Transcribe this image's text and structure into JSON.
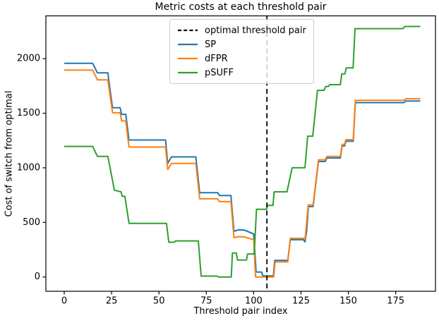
{
  "figure": {
    "title": "Metric costs at each threshold pair",
    "x_label": "Threshold pair index",
    "y_label": "Cost of switch from optimal"
  },
  "legend": {
    "items": [
      {
        "label": "optimal threshold pair",
        "color": "#000000",
        "style": "dashed"
      },
      {
        "label": "SP",
        "color": "#1f77b4",
        "style": "solid"
      },
      {
        "label": "dFPR",
        "color": "#ff7f0e",
        "style": "solid"
      },
      {
        "label": "pSUFF",
        "color": "#2ca02c",
        "style": "solid"
      }
    ]
  },
  "chart_data": {
    "type": "line",
    "title": "Metric costs at each threshold pair",
    "xlabel": "Threshold pair index",
    "ylabel": "Cost of switch from optimal",
    "xlim": [
      -9.7,
      196
    ],
    "ylim": [
      -131,
      2392
    ],
    "x_ticks": [
      0,
      25,
      50,
      75,
      100,
      125,
      150,
      175
    ],
    "y_ticks": [
      0,
      500,
      1000,
      1500,
      2000
    ],
    "grid": false,
    "legend_position": "upper center",
    "vline": {
      "x": 107,
      "label": "optimal threshold pair",
      "color": "#000000",
      "style": "dashed"
    },
    "series": [
      {
        "name": "SP",
        "color": "#1f77b4",
        "points": [
          [
            0,
            1957
          ],
          [
            15,
            1957
          ],
          [
            17.5,
            1870
          ],
          [
            23,
            1870
          ],
          [
            24.3,
            1700
          ],
          [
            25.5,
            1550
          ],
          [
            29.5,
            1550
          ],
          [
            30.3,
            1490
          ],
          [
            32.5,
            1490
          ],
          [
            34.2,
            1255
          ],
          [
            53.5,
            1255
          ],
          [
            54.6,
            1041
          ],
          [
            56.6,
            1100
          ],
          [
            69.5,
            1100
          ],
          [
            71.5,
            772
          ],
          [
            81,
            772
          ],
          [
            82,
            746
          ],
          [
            88,
            746
          ],
          [
            89.6,
            418
          ],
          [
            92,
            432
          ],
          [
            95,
            430
          ],
          [
            100,
            394
          ],
          [
            101.3,
            45
          ],
          [
            104.2,
            45
          ],
          [
            104.9,
            10
          ],
          [
            110.4,
            10
          ],
          [
            111.1,
            152
          ],
          [
            118,
            152
          ],
          [
            119.4,
            341
          ],
          [
            126.3,
            341
          ],
          [
            127.1,
            322
          ],
          [
            128,
            420
          ],
          [
            128.9,
            645
          ],
          [
            131.4,
            645
          ],
          [
            134.2,
            1058
          ],
          [
            137.8,
            1058
          ],
          [
            138.7,
            1090
          ],
          [
            145.8,
            1090
          ],
          [
            146.7,
            1200
          ],
          [
            148,
            1200
          ],
          [
            148.7,
            1243
          ],
          [
            152.6,
            1243
          ],
          [
            153.7,
            1597
          ],
          [
            179.3,
            1597
          ],
          [
            180.3,
            1612
          ],
          [
            188,
            1612
          ]
        ]
      },
      {
        "name": "dFPR",
        "color": "#ff7f0e",
        "points": [
          [
            0,
            1895
          ],
          [
            15,
            1895
          ],
          [
            17.5,
            1806
          ],
          [
            23,
            1806
          ],
          [
            24.3,
            1650
          ],
          [
            25.5,
            1504
          ],
          [
            29.5,
            1504
          ],
          [
            30.3,
            1429
          ],
          [
            32.5,
            1429
          ],
          [
            34.2,
            1190
          ],
          [
            53.5,
            1190
          ],
          [
            54.6,
            985
          ],
          [
            56.6,
            1040
          ],
          [
            69.5,
            1040
          ],
          [
            71.5,
            716
          ],
          [
            81,
            716
          ],
          [
            82,
            690
          ],
          [
            88,
            690
          ],
          [
            89.6,
            360
          ],
          [
            92,
            370
          ],
          [
            95,
            367
          ],
          [
            100,
            341
          ],
          [
            101,
            0
          ],
          [
            110.6,
            0
          ],
          [
            111.3,
            138
          ],
          [
            118,
            138
          ],
          [
            119.4,
            354
          ],
          [
            127.2,
            354
          ],
          [
            128.8,
            660
          ],
          [
            131.4,
            660
          ],
          [
            134.2,
            1073
          ],
          [
            137.8,
            1073
          ],
          [
            138.7,
            1105
          ],
          [
            145.8,
            1105
          ],
          [
            146.7,
            1215
          ],
          [
            148,
            1215
          ],
          [
            148.7,
            1258
          ],
          [
            152.6,
            1258
          ],
          [
            153.7,
            1618
          ],
          [
            179.3,
            1618
          ],
          [
            180.3,
            1633
          ],
          [
            188,
            1633
          ]
        ]
      },
      {
        "name": "pSUFF",
        "color": "#2ca02c",
        "points": [
          [
            0,
            1196
          ],
          [
            15,
            1196
          ],
          [
            17.5,
            1105
          ],
          [
            23,
            1105
          ],
          [
            26.5,
            795
          ],
          [
            30,
            780
          ],
          [
            30.6,
            740
          ],
          [
            32,
            740
          ],
          [
            34.2,
            491
          ],
          [
            54,
            491
          ],
          [
            55.2,
            318
          ],
          [
            58,
            318
          ],
          [
            58.8,
            330
          ],
          [
            70.8,
            330
          ],
          [
            72.3,
            8
          ],
          [
            80.5,
            8
          ],
          [
            81.5,
            0
          ],
          [
            88.2,
            0
          ],
          [
            88.8,
            220
          ],
          [
            90.8,
            220
          ],
          [
            91.5,
            155
          ],
          [
            96.2,
            155
          ],
          [
            96.8,
            211
          ],
          [
            100.3,
            211
          ],
          [
            101.5,
            620
          ],
          [
            106.8,
            620
          ],
          [
            107.3,
            655
          ],
          [
            110.2,
            655
          ],
          [
            110.8,
            780
          ],
          [
            117.6,
            780
          ],
          [
            120.3,
            1000
          ],
          [
            127.1,
            1000
          ],
          [
            128.5,
            1290
          ],
          [
            131.2,
            1290
          ],
          [
            133.7,
            1710
          ],
          [
            137.2,
            1710
          ],
          [
            138,
            1745
          ],
          [
            139.4,
            1745
          ],
          [
            140.2,
            1762
          ],
          [
            145.8,
            1762
          ],
          [
            146.5,
            1860
          ],
          [
            148.2,
            1860
          ],
          [
            148.9,
            1915
          ],
          [
            152.5,
            1915
          ],
          [
            153.5,
            2275
          ],
          [
            178.7,
            2275
          ],
          [
            180,
            2295
          ],
          [
            188,
            2295
          ]
        ]
      }
    ]
  }
}
